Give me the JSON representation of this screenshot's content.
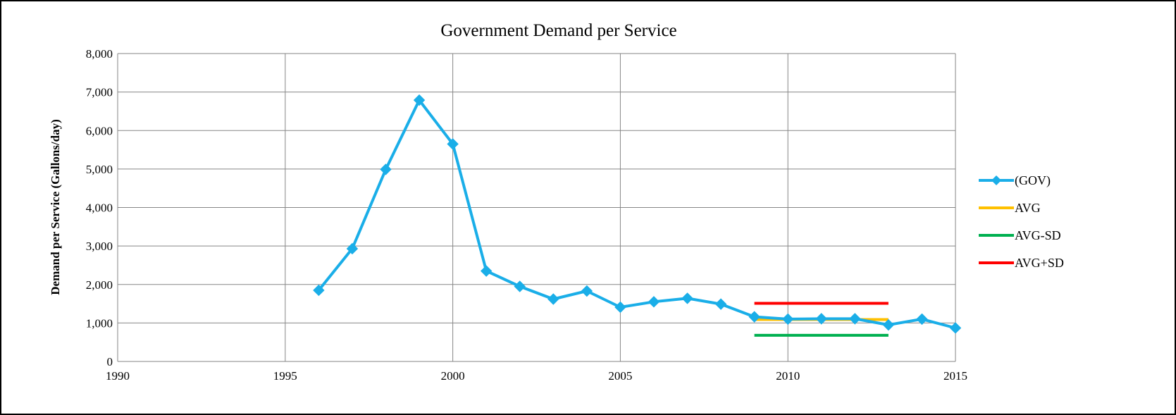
{
  "chart_data": {
    "type": "line",
    "title": "Government Demand per Service",
    "xlabel": "",
    "ylabel": "Demand per Service (Gallons/day)",
    "xlim": [
      1990,
      2015
    ],
    "ylim": [
      0,
      8000
    ],
    "x_ticks": [
      "1990",
      "1995",
      "2000",
      "2005",
      "2010",
      "2015"
    ],
    "y_ticks": [
      "0",
      "1,000",
      "2,000",
      "3,000",
      "4,000",
      "5,000",
      "6,000",
      "7,000",
      "8,000"
    ],
    "grid": true,
    "legend_position": "right",
    "series": [
      {
        "name": "(GOV)",
        "color": "#1aaee8",
        "marker": "diamond",
        "x": [
          1996,
          1997,
          1998,
          1999,
          2000,
          2001,
          2002,
          2003,
          2004,
          2005,
          2006,
          2007,
          2008,
          2009,
          2010,
          2011,
          2012,
          2013,
          2014,
          2015
        ],
        "y": [
          1850,
          2930,
          4990,
          6790,
          5650,
          2350,
          1950,
          1620,
          1830,
          1410,
          1550,
          1640,
          1490,
          1160,
          1100,
          1110,
          1110,
          950,
          1100,
          870
        ]
      },
      {
        "name": "AVG",
        "color": "#ffc000",
        "marker": "none",
        "x": [
          2009,
          2013
        ],
        "y": [
          1090,
          1090
        ]
      },
      {
        "name": "AVG-SD",
        "color": "#00b050",
        "marker": "none",
        "x": [
          2009,
          2013
        ],
        "y": [
          680,
          680
        ]
      },
      {
        "name": "AVG+SD",
        "color": "#ff0000",
        "marker": "none",
        "x": [
          2009,
          2013
        ],
        "y": [
          1510,
          1510
        ]
      }
    ]
  }
}
